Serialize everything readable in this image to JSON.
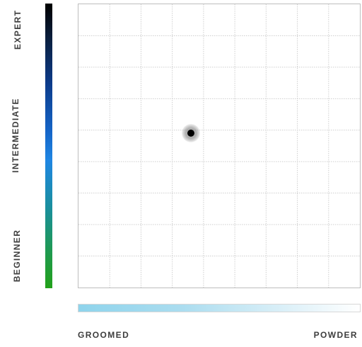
{
  "axis_labels": {
    "vertical": {
      "top": "EXPERT",
      "middle": "INTERMEDIATE",
      "bottom": "BEGINNER"
    },
    "horizontal": {
      "left": "GROOMED",
      "right": "POWDER"
    }
  },
  "colors": {
    "vertical_bar_top": "#000000",
    "vertical_bar_mid": "#1f86e3",
    "vertical_bar_bottom": "#22a11a",
    "horizontal_bar_left": "#8fd4ec",
    "horizontal_bar_right": "#ffffff",
    "marker": "#000000"
  },
  "selection": {
    "terrain": 0.4,
    "ability": 0.545
  }
}
